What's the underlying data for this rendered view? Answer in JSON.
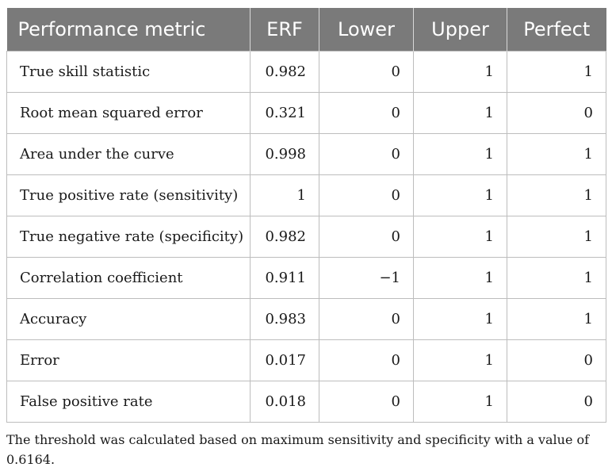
{
  "table": {
    "headers": [
      "Performance metric",
      "ERF",
      "Lower",
      "Upper",
      "Perfect"
    ],
    "rows": [
      [
        "True skill statistic",
        "0.982",
        "0",
        "1",
        "1"
      ],
      [
        "Root mean squared error",
        "0.321",
        "0",
        "1",
        "0"
      ],
      [
        "Area under the curve",
        "0.998",
        "0",
        "1",
        "1"
      ],
      [
        "True positive rate (sensitivity)",
        "1",
        "0",
        "1",
        "1"
      ],
      [
        "True negative rate (specificity)",
        "0.982",
        "0",
        "1",
        "1"
      ],
      [
        "Correlation coefficient",
        "0.911",
        "−1",
        "1",
        "1"
      ],
      [
        "Accuracy",
        "0.983",
        "0",
        "1",
        "1"
      ],
      [
        "Error",
        "0.017",
        "0",
        "1",
        "0"
      ],
      [
        "False positive rate",
        "0.018",
        "0",
        "1",
        "0"
      ]
    ]
  },
  "footnote": "The threshold was calculated based on maximum sensitivity and specificity with a value of 0.6164."
}
